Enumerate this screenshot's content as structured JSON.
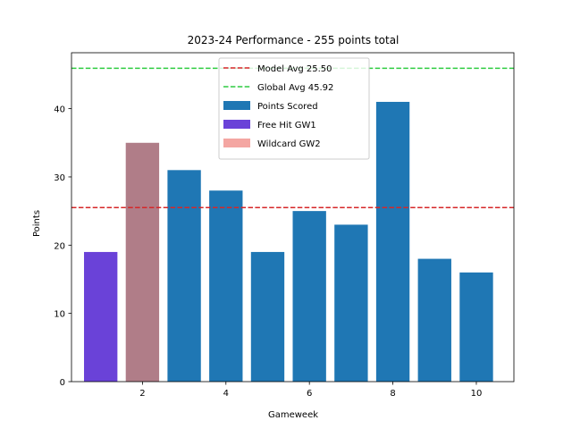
{
  "chart_data": {
    "type": "bar",
    "title": "2023-24 Performance - 255 points total",
    "xlabel": "Gameweek",
    "ylabel": "Points",
    "xlim": [
      0.3,
      10.9
    ],
    "ylim": [
      0,
      48.2
    ],
    "xticks": [
      2,
      4,
      6,
      8,
      10
    ],
    "yticks": [
      0,
      10,
      20,
      30,
      40
    ],
    "x": [
      1,
      2,
      3,
      4,
      5,
      6,
      7,
      8,
      9,
      10
    ],
    "values": [
      19,
      35,
      31,
      28,
      19,
      25,
      23,
      41,
      18,
      16
    ],
    "series": [
      {
        "name": "Points Scored",
        "color": "#1f77b4"
      },
      {
        "name": "Free Hit GW1",
        "color": "#6a42d8",
        "x": 1
      },
      {
        "name": "Wildcard GW2",
        "color": "#b07d88",
        "legend_color": "#f4a6a2",
        "x": 2
      }
    ],
    "reference_lines": [
      {
        "name": "Model Avg 25.50",
        "value": 25.5,
        "color": "#d62728",
        "style": "dashed"
      },
      {
        "name": "Global Avg 45.92",
        "value": 45.92,
        "color": "#2ecc40",
        "style": "dashed"
      }
    ],
    "grid": false,
    "legend_position": "top-center"
  }
}
